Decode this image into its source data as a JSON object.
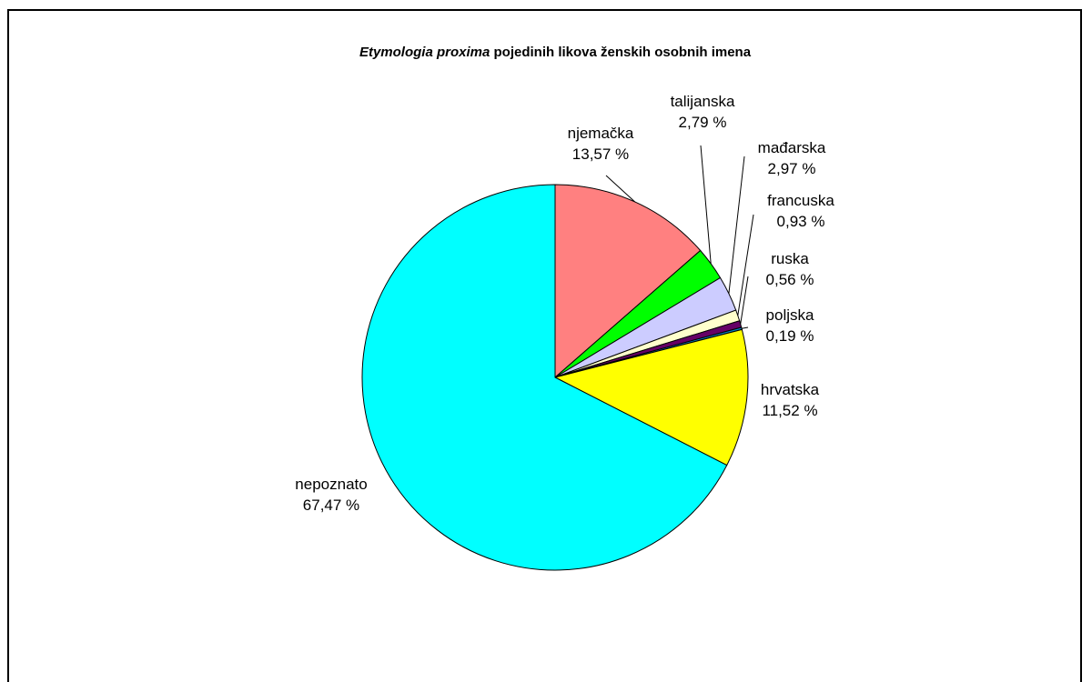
{
  "chart_data": {
    "type": "pie",
    "title_italic": "Etymologia proxima",
    "title_rest": " pojedinih likova ženskih osobnih imena",
    "legend": "none",
    "slices": [
      {
        "label": "njemačka",
        "value": 13.57,
        "display": "13,57 %",
        "color": "#ff8080"
      },
      {
        "label": "talijanska",
        "value": 2.79,
        "display": "2,79 %",
        "color": "#00ff00"
      },
      {
        "label": "mađarska",
        "value": 2.97,
        "display": "2,97 %",
        "color": "#ccccff"
      },
      {
        "label": "francuska",
        "value": 0.93,
        "display": "0,93 %",
        "color": "#ffffcc"
      },
      {
        "label": "ruska",
        "value": 0.56,
        "display": "0,56 %",
        "color": "#660066"
      },
      {
        "label": "poljska",
        "value": 0.19,
        "display": "0,19 %",
        "color": "#0080c0"
      },
      {
        "label": "hrvatska",
        "value": 11.52,
        "display": "11,52 %",
        "color": "#ffff00"
      },
      {
        "label": "nepoznato",
        "value": 67.47,
        "display": "67,47 %",
        "color": "#00ffff"
      }
    ]
  }
}
